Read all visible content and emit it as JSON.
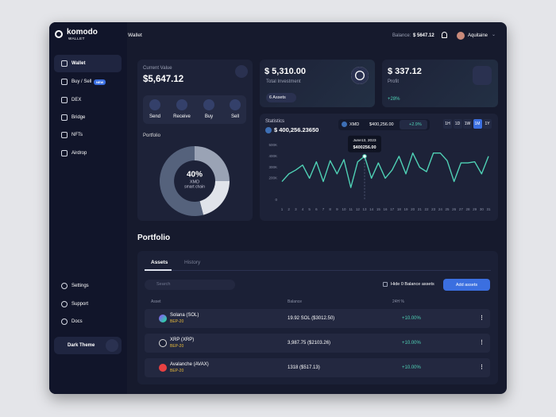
{
  "logo": {
    "name": "komodo",
    "sub": "WALLET"
  },
  "header": {
    "title": "Wallet",
    "balance_label": "Balance:",
    "balance": "$ 5647.12",
    "user": "Aquitaine"
  },
  "sidebar": {
    "items": [
      "Wallet",
      "Buy / Sell",
      "DEX",
      "Bridge",
      "NFTs",
      "Airdrop"
    ],
    "badge": "NEW",
    "bottom": [
      "Settings",
      "Support",
      "Docs"
    ],
    "theme": "Dark Theme"
  },
  "current_value": {
    "label": "Current Value",
    "value": "$5,647.12",
    "actions": [
      "Send",
      "Receive",
      "Buy",
      "Sell"
    ],
    "portfolio_label": "Portfolio",
    "donut": {
      "percent": "40%",
      "coin": "XMD",
      "chain": "smart chain"
    }
  },
  "investment": {
    "value": "$ 5,310.00",
    "label": "Total Investment",
    "assets": "6 Assets"
  },
  "profit": {
    "value": "$ 337.12",
    "label": "Profit",
    "change": "+28%"
  },
  "statistics": {
    "title": "Statistics",
    "total": "$ 400,256.23650",
    "coin": "XMD",
    "price": "$400,256.00",
    "change": "+2.9%",
    "ranges": [
      "1H",
      "1D",
      "1W",
      "1M",
      "1Y"
    ],
    "active_range": 3,
    "tooltip": {
      "date": "June13, 2023",
      "value": "$400256.00",
      "x": 13
    },
    "chart": {
      "type": "line",
      "color": "#4fd1b5",
      "grid": false,
      "x": [
        1,
        2,
        3,
        4,
        5,
        6,
        7,
        8,
        9,
        10,
        11,
        12,
        13,
        14,
        15,
        16,
        17,
        18,
        19,
        20,
        21,
        22,
        23,
        24,
        25,
        26,
        27,
        28,
        29,
        30,
        31
      ],
      "values": [
        170000,
        240000,
        275000,
        320000,
        200000,
        350000,
        170000,
        360000,
        240000,
        370000,
        115000,
        350000,
        400256,
        200000,
        340000,
        200000,
        275000,
        400000,
        240000,
        430000,
        300000,
        260000,
        430000,
        430000,
        360000,
        170000,
        340000,
        340000,
        350000,
        240000,
        400000
      ],
      "xlim": [
        1,
        31
      ],
      "ylim": [
        0,
        500000
      ],
      "yticks": [
        {
          "value": 500000,
          "label": "500K"
        },
        {
          "value": 400000,
          "label": "400K"
        },
        {
          "value": 300000,
          "label": "300K"
        },
        {
          "value": 200000,
          "label": "200K"
        },
        0
      ]
    }
  },
  "portfolio": {
    "title": "Portfolio",
    "tabs": [
      "Assets",
      "History"
    ],
    "search": "Search",
    "hide_zero": "Hide 0 Balance assets",
    "add": "Add assets",
    "columns": [
      "Asset",
      "Balance",
      "24H %"
    ],
    "rows": [
      {
        "name": "Solana (SOL)",
        "network": "BEP-20",
        "balance": "19.92 SOL ($3012.50)",
        "change": "+10.00%"
      },
      {
        "name": "XRP (XRP)",
        "network": "BEP-20",
        "balance": "3,987.75 ($2103.26)",
        "change": "+10.00%"
      },
      {
        "name": "Avalanche (AVAX)",
        "network": "BEP-20",
        "balance": "1318 ($517.13)",
        "change": "+10.00%"
      }
    ]
  }
}
